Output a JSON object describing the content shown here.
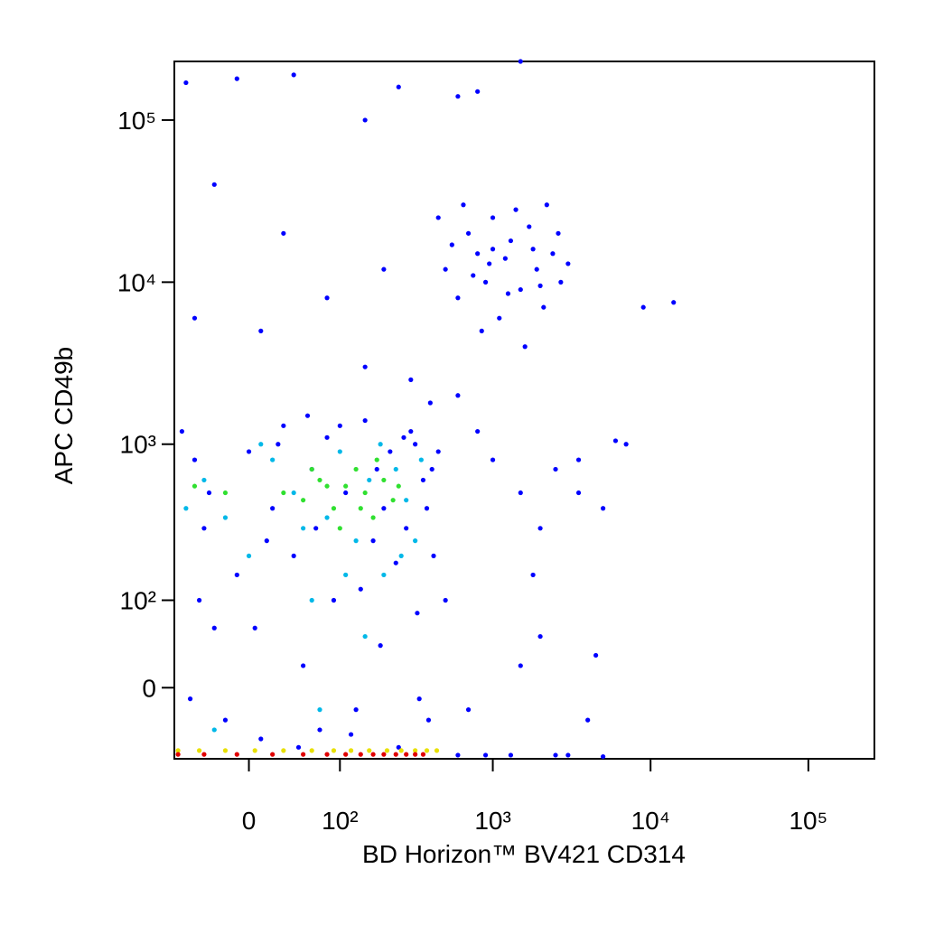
{
  "chart_data": {
    "type": "scatter",
    "xlabel": "BD Horizon™ BV421 CD314",
    "ylabel": "APC CD49b",
    "xscale": "biexponential",
    "yscale": "biexponential",
    "xlim": [
      -75,
      262144
    ],
    "ylim": [
      -75,
      230000
    ],
    "xticks": [
      0,
      {
        "value": 100,
        "label": "10²"
      },
      {
        "value": 1000,
        "label": "10³"
      },
      {
        "value": 10000,
        "label": "10⁴"
      },
      {
        "value": 100000,
        "label": "10⁵"
      }
    ],
    "yticks": [
      0,
      {
        "value": 100,
        "label": "10²"
      },
      {
        "value": 1000,
        "label": "10³"
      },
      {
        "value": 10000,
        "label": "10⁴"
      },
      {
        "value": 100000,
        "label": "10⁵"
      }
    ],
    "series": [
      {
        "color": "#0000ff",
        "x": [
          -65,
          -50,
          -40,
          -30,
          -20,
          -10,
          0,
          10,
          20,
          30,
          40,
          50,
          60,
          70,
          80,
          90,
          110,
          130,
          150,
          170,
          190,
          220,
          250,
          280,
          300,
          330,
          360,
          390,
          420,
          450,
          -55,
          -35,
          5,
          25,
          45,
          65,
          100,
          140,
          180,
          240,
          320,
          380,
          -45,
          15,
          55,
          120,
          200,
          270,
          340,
          410,
          500,
          600,
          700,
          800,
          900,
          1000,
          1100,
          1200,
          1300,
          1500,
          1700,
          1900,
          2100,
          2400,
          2700,
          3000,
          450,
          650,
          850,
          1400,
          2200,
          1600,
          1000,
          750,
          550,
          2000,
          1250,
          950,
          1800,
          2600,
          -60,
          -10,
          40,
          150,
          250,
          800,
          600,
          1500,
          -30,
          30,
          80,
          150,
          300,
          -50,
          10,
          200,
          400,
          600,
          800,
          1000,
          1500,
          2000,
          2500,
          3500,
          5000,
          7000,
          6000,
          9000,
          14000,
          1800,
          2000,
          4000,
          600,
          900,
          1300,
          2500,
          5000,
          500,
          700,
          1500,
          3000,
          3500,
          4500
        ],
        "values": [
          1200,
          800,
          300,
          60,
          -30,
          150,
          900,
          -50,
          400,
          1300,
          200,
          20,
          700,
          -40,
          1100,
          100,
          500,
          -20,
          1400,
          250,
          40,
          900,
          -60,
          300,
          1200,
          80,
          600,
          -30,
          200,
          900,
          -10,
          500,
          60,
          1000,
          -60,
          300,
          1300,
          120,
          700,
          180,
          1000,
          400,
          100,
          250,
          1500,
          -45,
          400,
          1100,
          -10,
          700,
          12000,
          8000,
          20000,
          15000,
          10000,
          25000,
          6000,
          14000,
          18000,
          9000,
          22000,
          12000,
          7000,
          15000,
          10000,
          13000,
          25000,
          30000,
          5000,
          28000,
          30000,
          4000,
          16000,
          11000,
          17000,
          9500,
          8500,
          13000,
          16000,
          20000,
          170000,
          180000,
          190000,
          100000,
          160000,
          150000,
          140000,
          230000,
          40000,
          20000,
          8000,
          3000,
          2500,
          6000,
          5000,
          12000,
          1800,
          2000,
          1200,
          800,
          500,
          300,
          700,
          500,
          400,
          1000,
          1050,
          7000,
          7500,
          150,
          50,
          -30,
          -70,
          -70,
          -70,
          -70,
          -72,
          100,
          -20,
          20,
          -70,
          800,
          30
        ]
      },
      {
        "color": "#00b8e8",
        "x": [
          -40,
          -20,
          0,
          20,
          40,
          60,
          80,
          100,
          130,
          160,
          200,
          240,
          280,
          320,
          -60,
          10,
          50,
          110,
          190,
          260,
          350,
          -30,
          70,
          150
        ],
        "values": [
          600,
          350,
          200,
          800,
          500,
          100,
          350,
          900,
          250,
          600,
          150,
          700,
          450,
          250,
          400,
          1000,
          300,
          150,
          1000,
          200,
          800,
          -40,
          -20,
          50
        ]
      },
      {
        "color": "#30e030",
        "x": [
          30,
          50,
          70,
          90,
          110,
          130,
          150,
          170,
          200,
          230,
          100,
          60,
          -20,
          -50,
          180,
          250,
          140,
          80
        ],
        "values": [
          500,
          450,
          600,
          400,
          550,
          700,
          500,
          350,
          600,
          450,
          300,
          700,
          500,
          550,
          800,
          550,
          400,
          550
        ]
      },
      {
        "color": "#e8e000",
        "x": [
          -70,
          -45,
          -20,
          5,
          30,
          60,
          90,
          120,
          160,
          210,
          260,
          320,
          380,
          440
        ],
        "values": [
          -64,
          -64,
          -64,
          -64,
          -64,
          -64,
          -64,
          -64,
          -64,
          -64,
          -64,
          -64,
          -64,
          -64
        ]
      },
      {
        "color": "#e00000",
        "x": [
          -70,
          -40,
          -10,
          20,
          50,
          80,
          110,
          140,
          170,
          200,
          240,
          280,
          320,
          360
        ],
        "values": [
          -69,
          -69,
          -69,
          -69,
          -69,
          -69,
          -69,
          -69,
          -69,
          -69,
          -69,
          -69,
          -69,
          -69
        ]
      }
    ]
  }
}
